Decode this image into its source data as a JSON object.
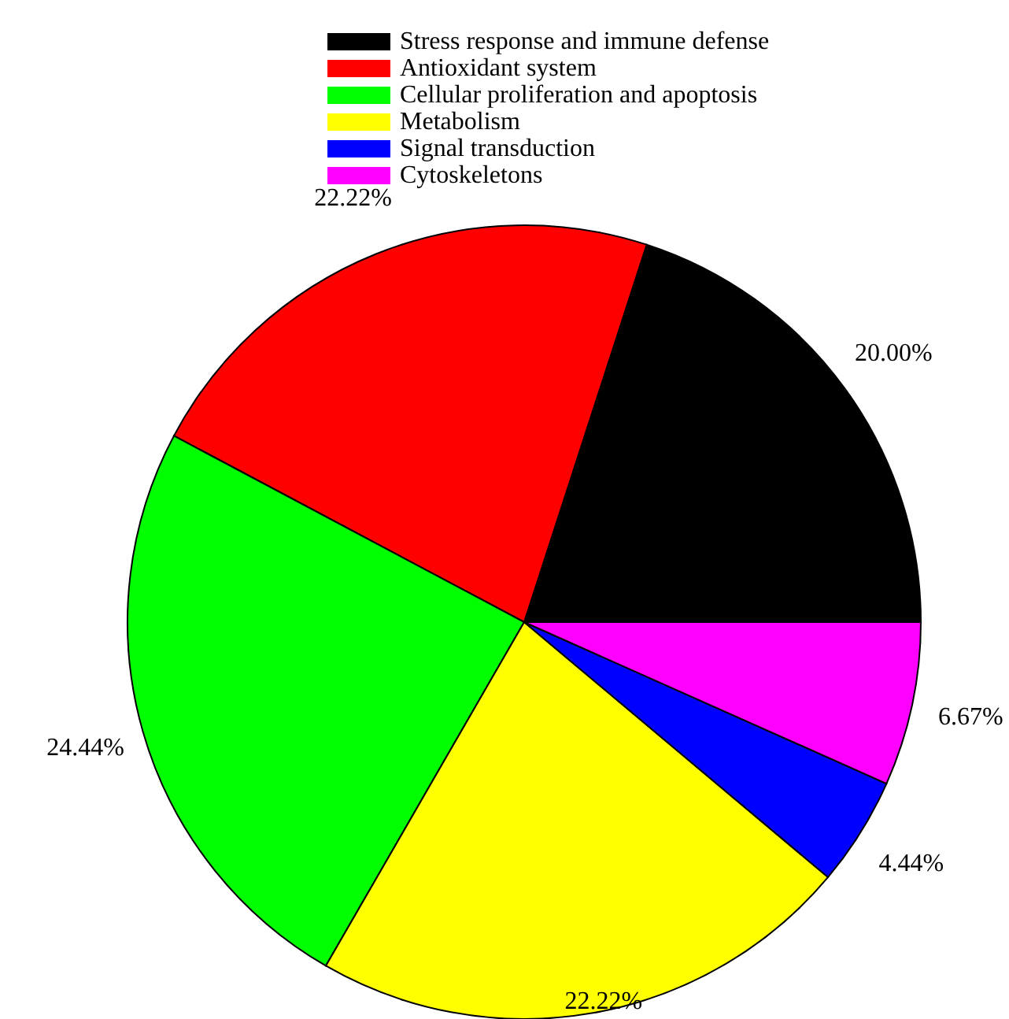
{
  "chart_data": {
    "type": "pie",
    "categories": [
      "Stress response and immune defense",
      "Antioxidant system",
      "Cellular proliferation and apoptosis",
      "Metabolism",
      "Signal transduction",
      "Cytoskeletons"
    ],
    "values": [
      20.0,
      22.22,
      24.44,
      22.22,
      4.44,
      6.67
    ],
    "colors": [
      "#000000",
      "#ff0000",
      "#00ff00",
      "#ffff00",
      "#0000ff",
      "#ff00ff"
    ],
    "value_labels": [
      "20.00%",
      "22.22%",
      "24.44%",
      "22.22%",
      "4.44%",
      "6.67%"
    ],
    "legend": "top"
  }
}
